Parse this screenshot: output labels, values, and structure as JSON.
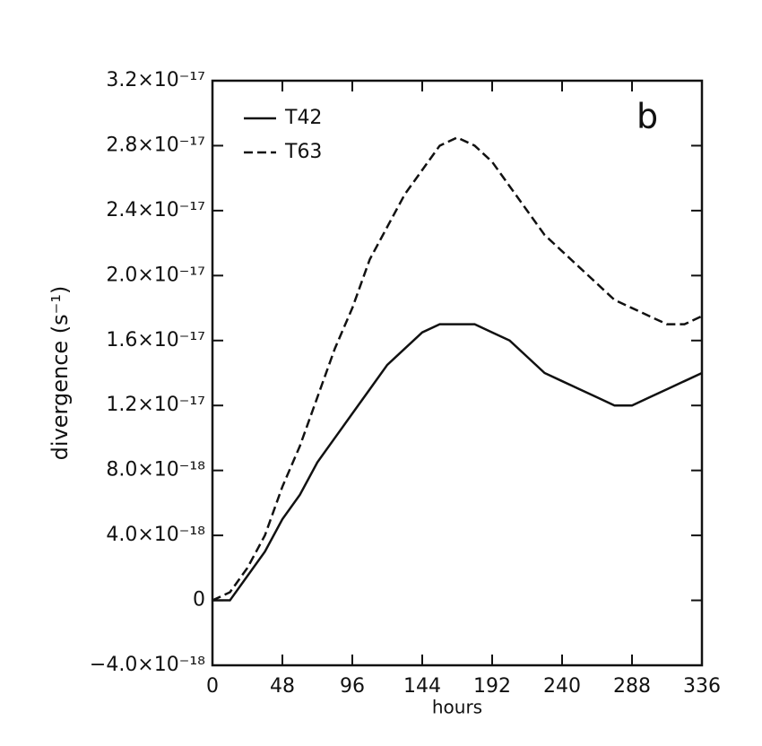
{
  "chart_data": {
    "type": "line",
    "annotation": "b",
    "xlabel": "hours",
    "ylabel": "divergence (s⁻¹)",
    "x": [
      0,
      12,
      24,
      36,
      48,
      60,
      72,
      84,
      96,
      108,
      120,
      132,
      144,
      156,
      168,
      180,
      192,
      204,
      216,
      228,
      240,
      252,
      264,
      276,
      288,
      300,
      312,
      324,
      336
    ],
    "series": [
      {
        "name": "T42",
        "color": "#111111",
        "dash": "solid",
        "values": [
          0,
          0,
          1.5e-18,
          3e-18,
          5e-18,
          6.5e-18,
          8.5e-18,
          1e-17,
          1.15e-17,
          1.3e-17,
          1.45e-17,
          1.55e-17,
          1.65e-17,
          1.7e-17,
          1.7e-17,
          1.7e-17,
          1.65e-17,
          1.6e-17,
          1.5e-17,
          1.4e-17,
          1.35e-17,
          1.3e-17,
          1.25e-17,
          1.2e-17,
          1.2e-17,
          1.25e-17,
          1.3e-17,
          1.35e-17,
          1.4e-17
        ]
      },
      {
        "name": "T63",
        "color": "#111111",
        "dash": "dashed",
        "values": [
          0,
          5e-19,
          2e-18,
          4e-18,
          7e-18,
          9.5e-18,
          1.25e-17,
          1.55e-17,
          1.8e-17,
          2.1e-17,
          2.3e-17,
          2.5e-17,
          2.65e-17,
          2.8e-17,
          2.85e-17,
          2.8e-17,
          2.7e-17,
          2.55e-17,
          2.4e-17,
          2.25e-17,
          2.15e-17,
          2.05e-17,
          1.95e-17,
          1.85e-17,
          1.8e-17,
          1.75e-17,
          1.7e-17,
          1.7e-17,
          1.75e-17
        ]
      }
    ],
    "xlim": [
      0,
      336
    ],
    "xticks": [
      0,
      48,
      96,
      144,
      192,
      240,
      288,
      336
    ],
    "ylim": [
      -4e-18,
      3.2e-17
    ],
    "yticks": [
      {
        "value": -4e-18,
        "label": "−4.0×10⁻¹⁸"
      },
      0,
      {
        "value": 4e-18,
        "label": "4.0×10⁻¹⁸"
      },
      {
        "value": 8e-18,
        "label": "8.0×10⁻¹⁸"
      },
      {
        "value": 1.2e-17,
        "label": "1.2×10⁻¹⁷"
      },
      {
        "value": 1.6e-17,
        "label": "1.6×10⁻¹⁷"
      },
      {
        "value": 2e-17,
        "label": "2.0×10⁻¹⁷"
      },
      {
        "value": 2.4e-17,
        "label": "2.4×10⁻¹⁷"
      },
      {
        "value": 2.8e-17,
        "label": "2.8×10⁻¹⁷"
      },
      {
        "value": 3.2e-17,
        "label": "3.2×10⁻¹⁷"
      }
    ],
    "grid": false,
    "legend": "upper-left"
  }
}
